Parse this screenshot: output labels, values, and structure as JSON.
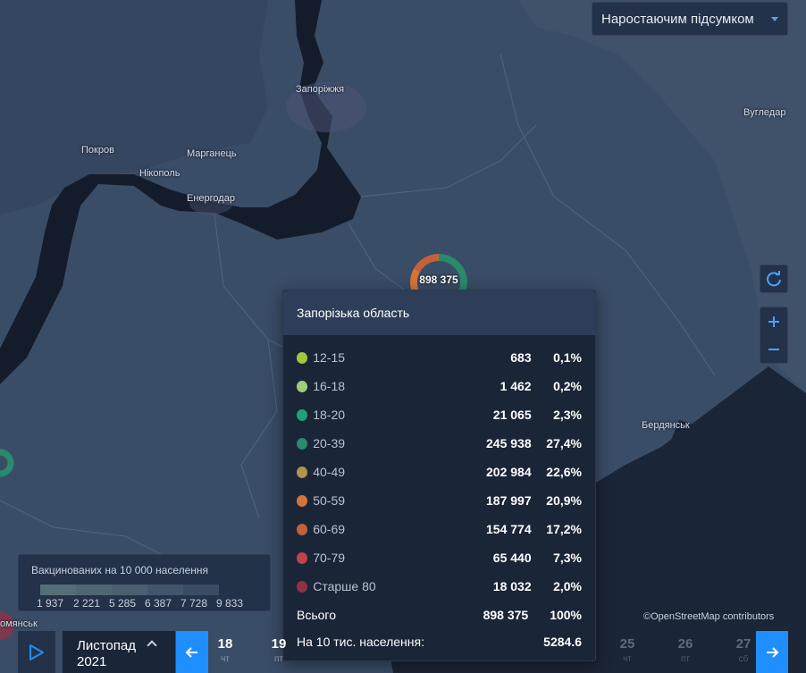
{
  "mode_select": {
    "label": "Наростаючим підсумком"
  },
  "cities": [
    {
      "id": "zaporizhzhia",
      "name": "Запоріжжя"
    },
    {
      "id": "pokrov",
      "name": "Покров"
    },
    {
      "id": "marhanets",
      "name": "Марганець"
    },
    {
      "id": "nikopol",
      "name": "Нікополь"
    },
    {
      "id": "enerhodar",
      "name": "Енергодар"
    },
    {
      "id": "vuhledar",
      "name": "Вугледар"
    },
    {
      "id": "berdiansk",
      "name": "Бердянськ"
    },
    {
      "id": "partial",
      "name": "омянськ"
    }
  ],
  "marker": {
    "total_label": "898 375"
  },
  "tooltip": {
    "region": "Запорізька область",
    "rows": [
      {
        "label": "12-15",
        "count": "683",
        "pct": "0,1%",
        "color": "#a4c639"
      },
      {
        "label": "16-18",
        "count": "1 462",
        "pct": "0,2%",
        "color": "#9fce7a"
      },
      {
        "label": "18-20",
        "count": "21 065",
        "pct": "2,3%",
        "color": "#1fa07a"
      },
      {
        "label": "20-39",
        "count": "245 938",
        "pct": "27,4%",
        "color": "#2a8a6c"
      },
      {
        "label": "40-49",
        "count": "202 984",
        "pct": "22,6%",
        "color": "#b0954a"
      },
      {
        "label": "50-59",
        "count": "187 997",
        "pct": "20,9%",
        "color": "#d5753a"
      },
      {
        "label": "60-69",
        "count": "154 774",
        "pct": "17,2%",
        "color": "#c3623a"
      },
      {
        "label": "70-79",
        "count": "65 440",
        "pct": "7,3%",
        "color": "#c2414a"
      },
      {
        "label": "Старше 80",
        "count": "18 032",
        "pct": "2,0%",
        "color": "#8e3343"
      }
    ],
    "total": {
      "label": "Всього",
      "count": "898 375",
      "pct": "100%"
    },
    "per_10k": {
      "label": "На 10 тис. населення:",
      "value": "5284.6"
    }
  },
  "legend": {
    "title": "Вакцинованих на 10 000 населення",
    "ticks": [
      "1 937",
      "2 221",
      "5 285",
      "6 387",
      "7 728",
      "9 833"
    ],
    "colors": [
      "#546e77",
      "#4f6673",
      "#4a5f70",
      "#43556b",
      "#3c4c65",
      "#37445f"
    ]
  },
  "attribution": "©OpenStreetMap contributors",
  "timeline": {
    "month": "Листопад",
    "year": "2021",
    "days": [
      {
        "num": "18",
        "wd": "чт",
        "dim": false
      },
      {
        "num": "19",
        "wd": "пт",
        "dim": false
      },
      {
        "num": "25",
        "wd": "чт",
        "dim": true
      },
      {
        "num": "26",
        "wd": "пт",
        "dim": true
      },
      {
        "num": "27",
        "wd": "сб",
        "dim": true
      }
    ]
  }
}
